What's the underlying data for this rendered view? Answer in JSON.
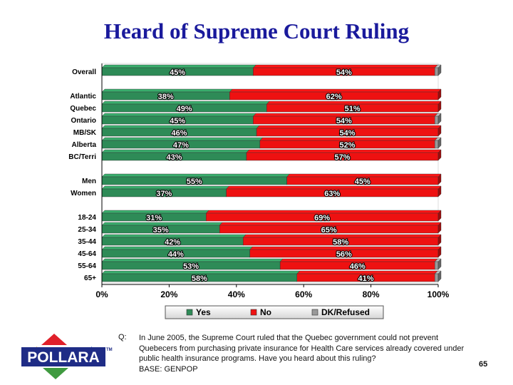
{
  "title": "Heard of Supreme Court Ruling",
  "chart_data": {
    "type": "bar",
    "orientation": "horizontal",
    "stacked": true,
    "categories": [
      "Overall",
      "Atlantic",
      "Quebec",
      "Ontario",
      "MB/SK",
      "Alberta",
      "BC/Terri",
      "Men",
      "Women",
      "18-24",
      "25-34",
      "35-44",
      "45-64",
      "55-64",
      "65+"
    ],
    "groups": [
      [
        "Overall"
      ],
      [
        "Atlantic",
        "Quebec",
        "Ontario",
        "MB/SK",
        "Alberta",
        "BC/Terri"
      ],
      [
        "Men",
        "Women"
      ],
      [
        "18-24",
        "25-34",
        "35-44",
        "45-64",
        "55-64",
        "65+"
      ]
    ],
    "series": [
      {
        "name": "Yes",
        "color": "#2e8b57",
        "values": [
          45,
          38,
          49,
          45,
          46,
          47,
          43,
          55,
          37,
          31,
          35,
          42,
          44,
          53,
          58
        ],
        "labels": [
          "45%",
          "38%",
          "49%",
          "45%",
          "46%",
          "47%",
          "43%",
          "55%",
          "37%",
          "31%",
          "35%",
          "42%",
          "44%",
          "53%",
          "58%"
        ]
      },
      {
        "name": "No",
        "color": "#ee1111",
        "values": [
          54,
          62,
          51,
          54,
          54,
          52,
          57,
          45,
          63,
          69,
          65,
          58,
          56,
          46,
          41
        ],
        "labels": [
          "54%",
          "62%",
          "51%",
          "54%",
          "54%",
          "52%",
          "57%",
          "45%",
          "63%",
          "69%",
          "65%",
          "58%",
          "56%",
          "46%",
          "41%"
        ]
      },
      {
        "name": "DK/Refused",
        "color": "#999999",
        "values": [
          1,
          0,
          0,
          1,
          0,
          1,
          0,
          0,
          0,
          0,
          0,
          0,
          0,
          1,
          1
        ],
        "labels": [
          "",
          "",
          "",
          "",
          "",
          "",
          "",
          "",
          "",
          "",
          "",
          "",
          "",
          "",
          ""
        ]
      }
    ],
    "xticks": [
      "0%",
      "20%",
      "40%",
      "60%",
      "80%",
      "100%"
    ],
    "xlim": [
      0,
      100
    ],
    "legend_position": "bottom",
    "grid": false
  },
  "footer": {
    "q_label": "Q:",
    "question": "In June 2005, the Supreme Court ruled that the Quebec government could not prevent Quebecers from purchasing private insurance for Health Care services already covered under public health insurance programs.  Have you heard about this ruling?",
    "base": "BASE: GENPOP",
    "page_number": "65",
    "logo_text": "POLLARA",
    "logo_tm": "TM"
  }
}
